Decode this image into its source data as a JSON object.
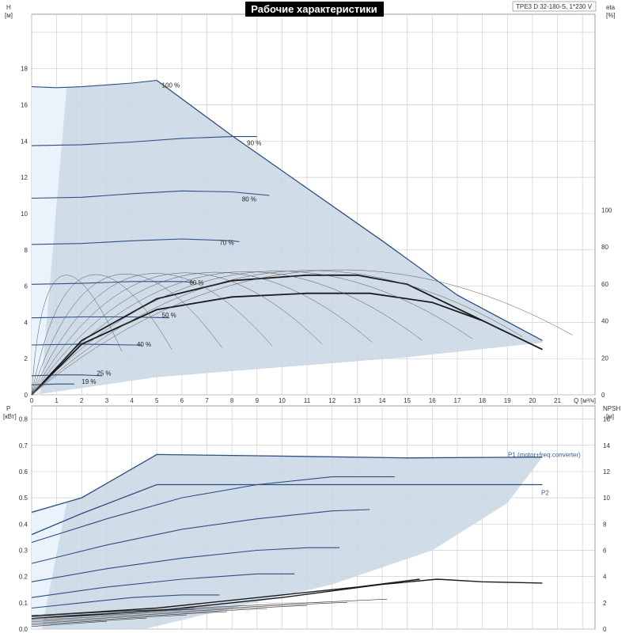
{
  "chart_data": [
    {
      "type": "line",
      "title": "Рабочие характеристики",
      "model_label": "TPE3 D 32-180-S, 1*230 V",
      "ylabel_left": "H",
      "ylabel_left_unit": "[м]",
      "ylabel_right": "eta",
      "ylabel_right_unit": "[%]",
      "xlabel": "Q",
      "xlabel_unit": "[м³/ч]",
      "xlim": [
        0,
        22.5
      ],
      "ylim": [
        0,
        21
      ],
      "x_ticks": [
        0,
        1,
        2,
        3,
        4,
        5,
        6,
        7,
        8,
        9,
        10,
        11,
        12,
        13,
        14,
        15,
        16,
        17,
        18,
        19,
        20,
        21
      ],
      "y_ticks": [
        0,
        2,
        4,
        6,
        8,
        10,
        12,
        14,
        16,
        18
      ],
      "y_right_ticks": [
        0,
        20,
        40,
        60,
        80,
        100
      ],
      "grid": true,
      "series": [
        {
          "name": "100 %",
          "x": [
            0,
            1,
            2,
            3,
            4,
            5
          ],
          "y": [
            17.0,
            16.95,
            17.0,
            17.1,
            17.2,
            17.35
          ]
        },
        {
          "name": "90 %",
          "x": [
            0,
            2,
            4,
            6,
            8,
            9
          ],
          "y": [
            13.75,
            13.8,
            13.95,
            14.15,
            14.25,
            14.25
          ]
        },
        {
          "name": "80 %",
          "x": [
            0,
            2,
            4,
            6,
            8,
            9.5
          ],
          "y": [
            10.85,
            10.9,
            11.1,
            11.25,
            11.2,
            11.0
          ]
        },
        {
          "name": "70 %",
          "x": [
            0,
            2,
            4,
            6,
            8,
            8.3
          ],
          "y": [
            8.3,
            8.35,
            8.5,
            8.6,
            8.5,
            8.45
          ]
        },
        {
          "name": "60 %",
          "x": [
            0,
            2,
            4,
            6,
            6.5
          ],
          "y": [
            6.1,
            6.15,
            6.25,
            6.25,
            6.2
          ]
        },
        {
          "name": "50 %",
          "x": [
            0,
            2,
            4,
            5.5
          ],
          "y": [
            4.25,
            4.3,
            4.3,
            4.25
          ]
        },
        {
          "name": "40 %",
          "x": [
            0,
            2,
            4,
            4.4
          ],
          "y": [
            2.75,
            2.8,
            2.75,
            2.75
          ]
        },
        {
          "name": "25 %",
          "x": [
            0,
            1,
            2,
            2.8
          ],
          "y": [
            1.05,
            1.1,
            1.1,
            1.05
          ]
        },
        {
          "name": "19 %",
          "x": [
            0,
            1,
            1.7
          ],
          "y": [
            0.55,
            0.6,
            0.6
          ]
        },
        {
          "name": "100 %",
          "x": [
            5,
            8,
            11,
            14,
            17,
            20.4
          ],
          "y": [
            17.35,
            14.3,
            11.4,
            8.5,
            5.5,
            3.0
          ]
        },
        {
          "name": "",
          "x": [
            0,
            5,
            10,
            15,
            20.4
          ],
          "y": [
            0,
            1.0,
            1.55,
            2.1,
            2.9
          ]
        },
        {
          "name": "",
          "x": [
            0,
            2,
            5,
            8,
            11,
            13.5,
            16,
            18,
            20.4
          ],
          "y": [
            0,
            2.8,
            4.7,
            5.4,
            5.6,
            5.6,
            5.1,
            4.1,
            2.5
          ]
        },
        {
          "name": "",
          "x": [
            0,
            2,
            5,
            8,
            11,
            13,
            15,
            18
          ],
          "y": [
            0,
            3.0,
            5.3,
            6.3,
            6.6,
            6.6,
            6.1,
            4.1
          ]
        }
      ],
      "curve_labels": [
        {
          "text": "100 %",
          "x": 5.2,
          "y": 17.1
        },
        {
          "text": "90 %",
          "x": 8.6,
          "y": 13.9
        },
        {
          "text": "80 %",
          "x": 8.4,
          "y": 10.8
        },
        {
          "text": "70 %",
          "x": 7.5,
          "y": 8.4
        },
        {
          "text": "60 %",
          "x": 6.3,
          "y": 6.2
        },
        {
          "text": "50 %",
          "x": 5.2,
          "y": 4.4
        },
        {
          "text": "40 %",
          "x": 4.2,
          "y": 2.8
        },
        {
          "text": "25 %",
          "x": 2.6,
          "y": 1.2
        },
        {
          "text": "19 %",
          "x": 2.0,
          "y": 0.75
        }
      ]
    },
    {
      "type": "line",
      "ylabel_left": "P",
      "ylabel_left_unit": "[кВт]",
      "ylabel_right": "NPSH",
      "ylabel_right_unit": "[м]",
      "xlim": [
        0,
        22.5
      ],
      "ylim": [
        0,
        0.85
      ],
      "y_ticks": [
        0,
        0.1,
        0.2,
        0.3,
        0.4,
        0.5,
        0.6,
        0.7,
        0.8
      ],
      "y_right_ticks": [
        0,
        2,
        4,
        6,
        8,
        10,
        12,
        14,
        16
      ],
      "grid": true,
      "series": [
        {
          "name": "P1 (motor+freq.converter)",
          "x": [
            0,
            2,
            5,
            9,
            15,
            20.4
          ],
          "y": [
            0.445,
            0.5,
            0.665,
            0.66,
            0.652,
            0.655
          ]
        },
        {
          "name": "P2",
          "x": [
            0,
            2,
            5,
            8,
            12,
            18,
            20.4
          ],
          "y": [
            0.36,
            0.44,
            0.55,
            0.55,
            0.55,
            0.55,
            0.55
          ]
        },
        {
          "name": "",
          "x": [
            0,
            3,
            6,
            9,
            12,
            14.5
          ],
          "y": [
            0.33,
            0.42,
            0.5,
            0.55,
            0.58,
            0.58
          ]
        },
        {
          "name": "",
          "x": [
            0,
            3,
            6,
            9,
            12,
            13.5
          ],
          "y": [
            0.25,
            0.32,
            0.38,
            0.42,
            0.45,
            0.455
          ]
        },
        {
          "name": "",
          "x": [
            0,
            3,
            6,
            9,
            11,
            12.3
          ],
          "y": [
            0.18,
            0.23,
            0.27,
            0.3,
            0.31,
            0.31
          ]
        },
        {
          "name": "",
          "x": [
            0,
            3,
            6,
            9,
            10.5
          ],
          "y": [
            0.12,
            0.16,
            0.19,
            0.21,
            0.21
          ]
        },
        {
          "name": "",
          "x": [
            0,
            2,
            4,
            6,
            7.5
          ],
          "y": [
            0.08,
            0.1,
            0.12,
            0.13,
            0.13
          ]
        },
        {
          "name": "",
          "x": [
            0,
            2,
            4,
            6.5
          ],
          "y": [
            0.05,
            0.06,
            0.07,
            0.075
          ]
        },
        {
          "name": "",
          "x": [
            0,
            5,
            10,
            13,
            15.5
          ],
          "y": [
            0.05,
            0.08,
            0.13,
            0.16,
            0.19
          ]
        },
        {
          "name": "",
          "x": [
            0,
            5,
            10,
            14,
            16.2,
            18,
            20.4
          ],
          "y": [
            0.04,
            0.07,
            0.12,
            0.17,
            0.19,
            0.18,
            0.175
          ]
        }
      ]
    }
  ]
}
